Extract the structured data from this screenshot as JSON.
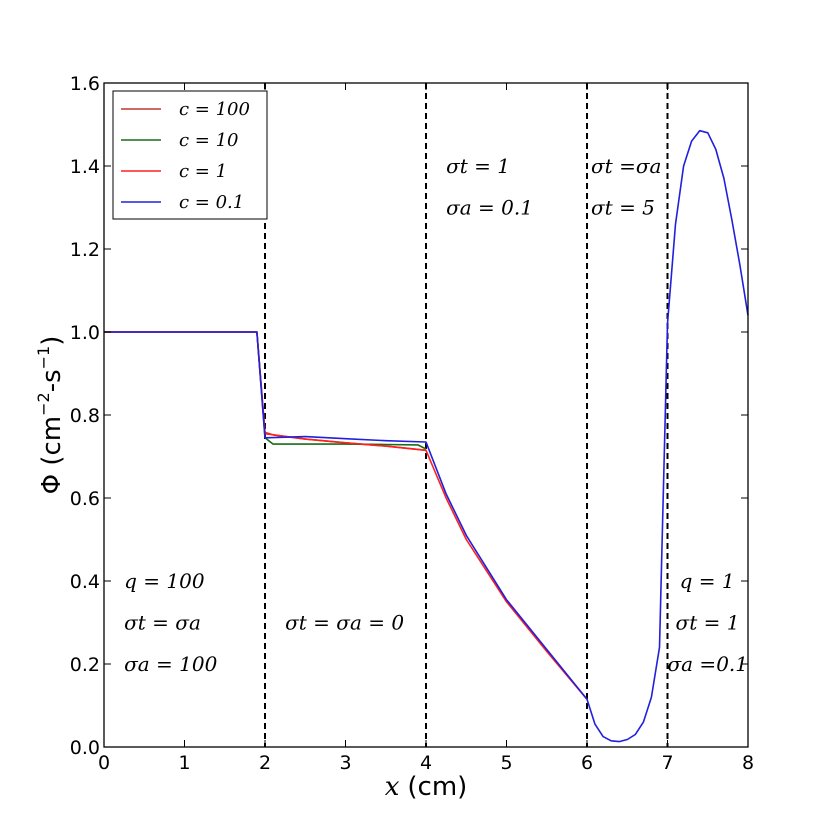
{
  "chart_data": {
    "type": "line",
    "xlabel": {
      "symbol": "x",
      "unit": "(cm)"
    },
    "ylabel": {
      "base": "Φ (cm",
      "exp1": "−2",
      "mid": "-s",
      "exp2": "−1",
      "end": ")"
    },
    "xlim": [
      0,
      8
    ],
    "ylim": [
      0,
      1.6
    ],
    "xticks": [
      0,
      1,
      2,
      3,
      4,
      5,
      6,
      7,
      8
    ],
    "yticks": [
      0.0,
      0.2,
      0.4,
      0.6,
      0.8,
      1.0,
      1.2,
      1.4,
      1.6
    ],
    "ytick_labels": [
      "0.0",
      "0.2",
      "0.4",
      "0.6",
      "0.8",
      "1.0",
      "1.2",
      "1.4",
      "1.6"
    ],
    "grid": false,
    "legend_position": "top-left",
    "region_boundaries": [
      2,
      4,
      6,
      7
    ],
    "series": [
      {
        "name": "c = 100",
        "color": "#c0392b",
        "x": [
          0,
          1.9,
          2.0,
          2.1,
          2.5,
          3.0,
          3.5,
          4.0
        ],
        "y": [
          1.0,
          1.0,
          0.758,
          0.752,
          0.742,
          0.733,
          0.725,
          0.715
        ]
      },
      {
        "name": "c = 10",
        "color": "#1a6b1a",
        "x": [
          0,
          1.9,
          2.0,
          2.1,
          2.5,
          3.0,
          3.5,
          3.9,
          4.0
        ],
        "y": [
          1.0,
          1.0,
          0.745,
          0.73,
          0.73,
          0.73,
          0.729,
          0.728,
          0.718
        ]
      },
      {
        "name": "c = 1",
        "color": "#ff2020",
        "x": [
          0,
          1.9,
          2.0,
          2.5,
          3.0,
          3.5,
          4.0,
          4.25,
          4.5,
          5.0,
          5.5,
          6.0
        ],
        "y": [
          1.0,
          1.0,
          0.755,
          0.742,
          0.733,
          0.725,
          0.715,
          0.6,
          0.5,
          0.35,
          0.23,
          0.115
        ]
      },
      {
        "name": "c = 0.1",
        "color": "#2020dd",
        "x": [
          0,
          1.9,
          2.0,
          2.5,
          3.0,
          3.5,
          4.0,
          4.25,
          4.5,
          5.0,
          5.5,
          6.0,
          6.1,
          6.2,
          6.3,
          6.4,
          6.5,
          6.6,
          6.7,
          6.8,
          6.9,
          7.0,
          7.1,
          7.2,
          7.3,
          7.4,
          7.5,
          7.6,
          7.7,
          7.8,
          7.9,
          8.0
        ],
        "y": [
          1.0,
          1.0,
          0.745,
          0.748,
          0.743,
          0.738,
          0.735,
          0.61,
          0.51,
          0.355,
          0.235,
          0.115,
          0.055,
          0.025,
          0.015,
          0.013,
          0.018,
          0.03,
          0.06,
          0.12,
          0.24,
          1.02,
          1.26,
          1.4,
          1.46,
          1.485,
          1.48,
          1.44,
          1.37,
          1.27,
          1.16,
          1.04
        ]
      }
    ],
    "annotations": [
      {
        "id": "r1-q",
        "x": 0.25,
        "y": 0.4,
        "text": "q = 100"
      },
      {
        "id": "r1-st",
        "x": 0.25,
        "y": 0.3,
        "text": "σt = σa"
      },
      {
        "id": "r1-sa",
        "x": 0.25,
        "y": 0.2,
        "text": "σa = 100"
      },
      {
        "id": "r2",
        "x": 2.25,
        "y": 0.3,
        "text": "σt = σa = 0"
      },
      {
        "id": "r3-st",
        "x": 4.25,
        "y": 1.4,
        "text": "σt = 1"
      },
      {
        "id": "r3-sa",
        "x": 4.25,
        "y": 1.3,
        "text": "σa = 0.1"
      },
      {
        "id": "r4-st",
        "x": 6.05,
        "y": 1.4,
        "text": "σt =σa"
      },
      {
        "id": "r4-sa",
        "x": 6.05,
        "y": 1.3,
        "text": "σt = 5"
      },
      {
        "id": "r5-q",
        "x": 7.15,
        "y": 0.4,
        "text": "q = 1"
      },
      {
        "id": "r5-st",
        "x": 7.1,
        "y": 0.3,
        "text": "σt = 1"
      },
      {
        "id": "r5-sa",
        "x": 7.0,
        "y": 0.2,
        "text": "σa =0.1"
      }
    ]
  }
}
